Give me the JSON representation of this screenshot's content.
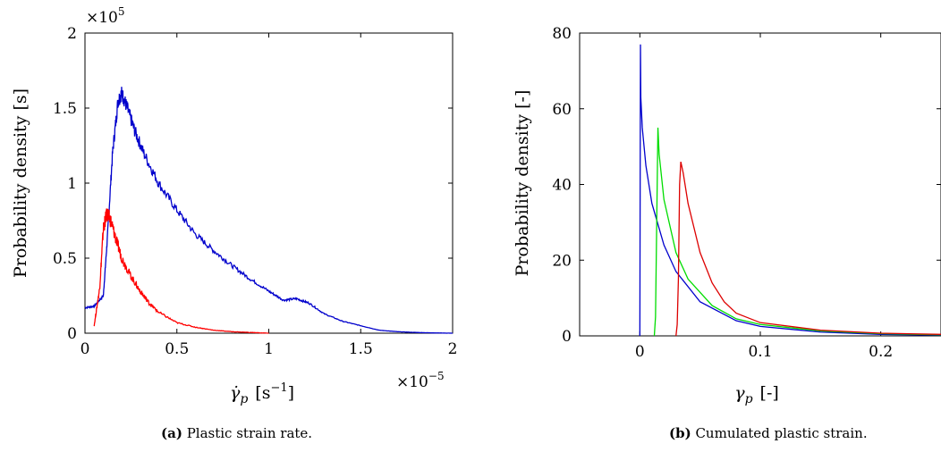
{
  "chart_data": [
    {
      "id": "a",
      "type": "line",
      "caption_tag": "(a)",
      "caption_text": " Plastic strain rate.",
      "ylabel": "Probability density [s]",
      "xlabel_symbol": "γ̇",
      "xlabel_sub": "p",
      "xlabel_unit_pre": "[s",
      "xlabel_unit_sup": "−1",
      "xlabel_unit_post": "]",
      "x_multiplier_base": "×10",
      "x_multiplier_exp": "−5",
      "y_multiplier_base": "×10",
      "y_multiplier_exp": "5",
      "xlim": [
        0,
        2
      ],
      "ylim": [
        0,
        2
      ],
      "xticks": [
        0,
        0.5,
        1,
        1.5,
        2
      ],
      "yticks": [
        0,
        0.5,
        1,
        1.5,
        2
      ],
      "xtick_labels": [
        "0",
        "0.5",
        "1",
        "1.5",
        "2"
      ],
      "ytick_labels": [
        "0",
        "0.5",
        "1",
        "1.5",
        "2"
      ],
      "series": [
        {
          "color": "#0000cc",
          "noise": 0.02,
          "x": [
            0,
            0.05,
            0.1,
            0.12,
            0.15,
            0.18,
            0.2,
            0.23,
            0.27,
            0.32,
            0.4,
            0.5,
            0.6,
            0.7,
            0.8,
            0.9,
            1.0,
            1.08,
            1.15,
            1.22,
            1.3,
            1.4,
            1.5,
            1.6,
            1.7,
            1.8,
            1.9,
            2.0
          ],
          "y": [
            0.17,
            0.18,
            0.25,
            0.6,
            1.2,
            1.55,
            1.6,
            1.5,
            1.35,
            1.2,
            1.0,
            0.82,
            0.66,
            0.55,
            0.45,
            0.36,
            0.28,
            0.22,
            0.23,
            0.2,
            0.13,
            0.08,
            0.05,
            0.02,
            0.01,
            0.005,
            0.002,
            0.0
          ]
        },
        {
          "color": "#ff0000",
          "noise": 0.04,
          "x": [
            0.05,
            0.08,
            0.1,
            0.12,
            0.14,
            0.17,
            0.2,
            0.25,
            0.3,
            0.35,
            0.4,
            0.5,
            0.6,
            0.7,
            0.8,
            0.9,
            1.0
          ],
          "y": [
            0.05,
            0.3,
            0.7,
            0.8,
            0.75,
            0.62,
            0.5,
            0.38,
            0.28,
            0.2,
            0.14,
            0.07,
            0.04,
            0.02,
            0.01,
            0.005,
            0.0
          ]
        }
      ]
    },
    {
      "id": "b",
      "type": "line",
      "caption_tag": "(b)",
      "caption_text": " Cumulated plastic strain.",
      "ylabel": "Probability density [-]",
      "xlabel_symbol": "γ",
      "xlabel_sub": "p",
      "xlabel_unit": "[-]",
      "xlim": [
        -0.05,
        0.25
      ],
      "ylim": [
        0,
        80
      ],
      "xticks": [
        0,
        0.1,
        0.2
      ],
      "yticks": [
        0,
        20,
        40,
        60,
        80
      ],
      "xtick_labels": [
        "0",
        "0.1",
        "0.2"
      ],
      "ytick_labels": [
        "0",
        "20",
        "40",
        "60",
        "80"
      ],
      "series": [
        {
          "color": "#0000cc",
          "x": [
            0.0,
            0.0005,
            0.0008,
            0.002,
            0.005,
            0.01,
            0.02,
            0.03,
            0.05,
            0.08,
            0.1,
            0.15,
            0.2,
            0.25
          ],
          "y": [
            0,
            77,
            63,
            55,
            45,
            35,
            24,
            17,
            9,
            4,
            2.5,
            1,
            0.4,
            0.2
          ]
        },
        {
          "color": "#00dd00",
          "x": [
            0.012,
            0.013,
            0.014,
            0.015,
            0.016,
            0.02,
            0.03,
            0.04,
            0.06,
            0.08,
            0.1,
            0.15,
            0.2,
            0.25
          ],
          "y": [
            0,
            5,
            30,
            55,
            48,
            36,
            22,
            15,
            8,
            4.5,
            3,
            1.3,
            0.6,
            0.3
          ]
        },
        {
          "color": "#dd0000",
          "x": [
            0.03,
            0.031,
            0.032,
            0.033,
            0.034,
            0.036,
            0.04,
            0.05,
            0.06,
            0.07,
            0.08,
            0.1,
            0.15,
            0.2,
            0.25
          ],
          "y": [
            0,
            3,
            15,
            40,
            46,
            43,
            35,
            22,
            14,
            9,
            6,
            3.5,
            1.5,
            0.7,
            0.4
          ]
        }
      ]
    }
  ]
}
